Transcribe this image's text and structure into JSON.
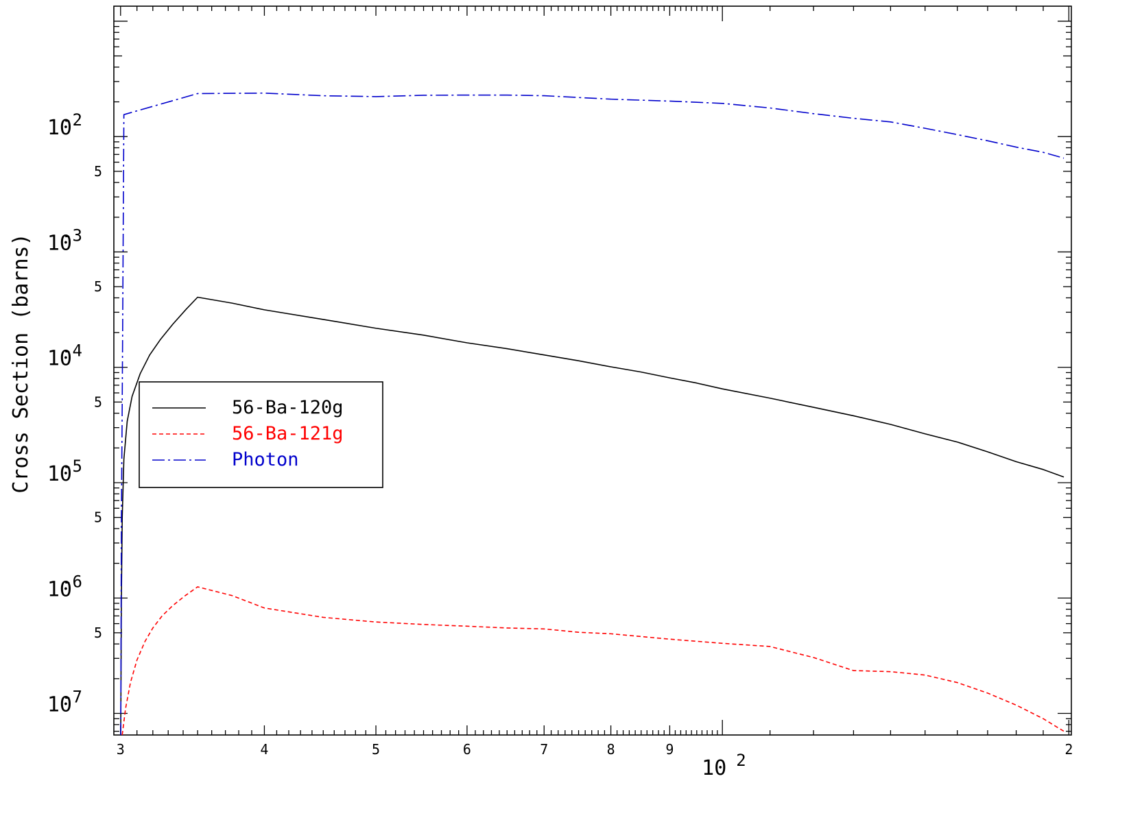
{
  "chart_data": {
    "type": "line",
    "title": "",
    "xlabel": "",
    "ylabel": "Cross Section (barns)",
    "x_scale": "log",
    "y_scale": "log",
    "xlim": [
      29.6,
      201
    ],
    "ylim": [
      6.5e-08,
      0.135
    ],
    "x_ticks": [
      {
        "value": 30,
        "label": "3"
      },
      {
        "value": 40,
        "label": "4"
      },
      {
        "value": 50,
        "label": "5"
      },
      {
        "value": 60,
        "label": "6"
      },
      {
        "value": 70,
        "label": "7"
      },
      {
        "value": 80,
        "label": "8"
      },
      {
        "value": 90,
        "label": "9"
      },
      {
        "value": 200,
        "label": "2"
      }
    ],
    "x_decade_label": {
      "value": 100,
      "base": "10",
      "exp": "2"
    },
    "y_decades": [
      {
        "value": 0.01,
        "base": "10",
        "exp": "-2"
      },
      {
        "value": 0.001,
        "base": "10",
        "exp": "-3"
      },
      {
        "value": 0.0001,
        "base": "10",
        "exp": "-4"
      },
      {
        "value": 1e-05,
        "base": "10",
        "exp": "-5"
      },
      {
        "value": 1e-06,
        "base": "10",
        "exp": "-6"
      },
      {
        "value": 1e-07,
        "base": "10",
        "exp": "-7"
      }
    ],
    "y_minor_labels": [
      {
        "value": 0.005,
        "label": "5"
      },
      {
        "value": 0.0005,
        "label": "5"
      },
      {
        "value": 5e-05,
        "label": "5"
      },
      {
        "value": 5e-06,
        "label": "5"
      },
      {
        "value": 5e-07,
        "label": "5"
      }
    ],
    "legend_position": "middle-left",
    "series": [
      {
        "name": "56-Ba-120g",
        "color": "#000000",
        "dash": "solid",
        "points": [
          [
            30.01,
            6.5e-08
          ],
          [
            30.05,
            1e-06
          ],
          [
            30.1,
            5e-06
          ],
          [
            30.2,
            1.6e-05
          ],
          [
            30.4,
            3.4e-05
          ],
          [
            30.7,
            5.6e-05
          ],
          [
            31.2,
            8.8e-05
          ],
          [
            31.8,
            0.000128
          ],
          [
            32.5,
            0.000175
          ],
          [
            33.3,
            0.000236
          ],
          [
            34.2,
            0.000318
          ],
          [
            35,
            0.000405
          ],
          [
            37.5,
            0.00036
          ],
          [
            40,
            0.000315
          ],
          [
            45,
            0.00026
          ],
          [
            50,
            0.000218
          ],
          [
            55,
            0.00019
          ],
          [
            60,
            0.000163
          ],
          [
            65,
            0.000145
          ],
          [
            70,
            0.000128
          ],
          [
            75,
            0.000114
          ],
          [
            80,
            0.000101
          ],
          [
            85,
            9.1e-05
          ],
          [
            90,
            8.1e-05
          ],
          [
            95,
            7.3e-05
          ],
          [
            100,
            6.5e-05
          ],
          [
            110,
            5.4e-05
          ],
          [
            120,
            4.5e-05
          ],
          [
            130,
            3.8e-05
          ],
          [
            140,
            3.2e-05
          ],
          [
            150,
            2.65e-05
          ],
          [
            160,
            2.25e-05
          ],
          [
            170,
            1.85e-05
          ],
          [
            180,
            1.52e-05
          ],
          [
            190,
            1.3e-05
          ],
          [
            198,
            1.12e-05
          ]
        ]
      },
      {
        "name": "56-Ba-121g",
        "color": "#ff0000",
        "dash": "dashed",
        "points": [
          [
            30.1,
            6.5e-08
          ],
          [
            30.3,
            1.1e-07
          ],
          [
            30.6,
            1.85e-07
          ],
          [
            31,
            2.9e-07
          ],
          [
            31.5,
            4.2e-07
          ],
          [
            32,
            5.5e-07
          ],
          [
            32.6,
            7e-07
          ],
          [
            33.3,
            8.6e-07
          ],
          [
            34.1,
            1.04e-06
          ],
          [
            35,
            1.25e-06
          ],
          [
            37.5,
            1.05e-06
          ],
          [
            40,
            8.2e-07
          ],
          [
            45,
            6.8e-07
          ],
          [
            50,
            6.2e-07
          ],
          [
            55,
            5.9e-07
          ],
          [
            60,
            5.7e-07
          ],
          [
            65,
            5.5e-07
          ],
          [
            70,
            5.4e-07
          ],
          [
            75,
            5.05e-07
          ],
          [
            80,
            4.9e-07
          ],
          [
            90,
            4.4e-07
          ],
          [
            100,
            4.05e-07
          ],
          [
            110,
            3.8e-07
          ],
          [
            120,
            3.05e-07
          ],
          [
            130,
            2.35e-07
          ],
          [
            140,
            2.3e-07
          ],
          [
            150,
            2.15e-07
          ],
          [
            160,
            1.85e-07
          ],
          [
            170,
            1.5e-07
          ],
          [
            180,
            1.18e-07
          ],
          [
            190,
            9e-08
          ],
          [
            198,
            7e-08
          ]
        ]
      },
      {
        "name": "Photon",
        "color": "#0000cc",
        "dash": "dashdot",
        "points": [
          [
            30.01,
            6.5e-08
          ],
          [
            30.05,
            5e-06
          ],
          [
            30.1,
            5e-05
          ],
          [
            30.2,
            0.0155
          ],
          [
            35,
            0.0236
          ],
          [
            40,
            0.0238
          ],
          [
            45,
            0.0226
          ],
          [
            50,
            0.0222
          ],
          [
            55,
            0.0228
          ],
          [
            60,
            0.0229
          ],
          [
            65,
            0.0229
          ],
          [
            70,
            0.0226
          ],
          [
            80,
            0.0211
          ],
          [
            90,
            0.0203
          ],
          [
            100,
            0.0194
          ],
          [
            110,
            0.0177
          ],
          [
            120,
            0.0158
          ],
          [
            130,
            0.0144
          ],
          [
            140,
            0.0134
          ],
          [
            150,
            0.0118
          ],
          [
            160,
            0.0104
          ],
          [
            170,
            0.0092
          ],
          [
            180,
            0.0081
          ],
          [
            190,
            0.0073
          ],
          [
            198,
            0.0065
          ]
        ]
      }
    ]
  }
}
